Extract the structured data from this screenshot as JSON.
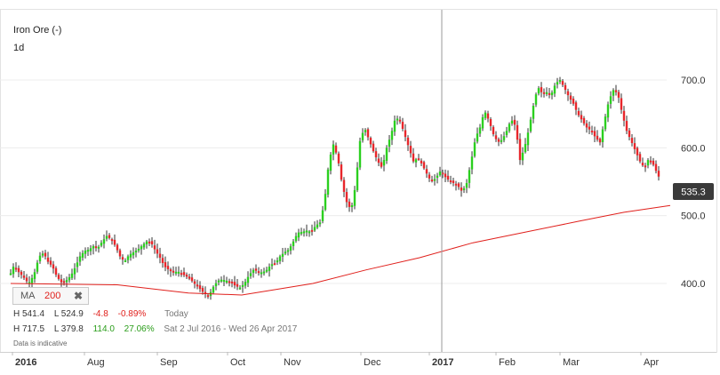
{
  "header": {
    "title": "Iron Ore (-)",
    "interval": "1d"
  },
  "moving_average": {
    "label": "MA",
    "period": "200",
    "close_icon": "close-icon"
  },
  "stats": {
    "today": {
      "high": "H 541.4",
      "low": "L 524.9",
      "change": "-4.8",
      "change_pct": "-0.89%",
      "period": "Today"
    },
    "range": {
      "high": "H 717.5",
      "low": "L 379.8",
      "change": "114.0",
      "change_pct": "27.06%",
      "period": "Sat 2 Jul 2016 - Wed 26 Apr 2017"
    }
  },
  "note": "Data is indicative",
  "last_price": "535.3",
  "colors": {
    "up": "#2bcf1f",
    "down": "#e8262b",
    "ma": "#e0201c",
    "grid": "#ececec",
    "price_tag": "#3a3a3a"
  },
  "chart_data": {
    "type": "candlestick",
    "title": "Iron Ore (-)",
    "x_ticks": [
      "2016",
      "Aug",
      "Sep",
      "Oct",
      "Nov",
      "Dec",
      "2017",
      "Feb",
      "Mar",
      "Apr"
    ],
    "y_ticks": [
      "400.0",
      "500.0",
      "600.0",
      "700.0"
    ],
    "ylim": [
      360,
      730
    ],
    "grid": true,
    "crosshair_at": "2017",
    "last_value": 535.3,
    "price_path": [
      [
        0,
        415
      ],
      [
        4,
        428
      ],
      [
        8,
        418
      ],
      [
        14,
        410
      ],
      [
        20,
        400
      ],
      [
        26,
        412
      ],
      [
        32,
        440
      ],
      [
        37,
        445
      ],
      [
        42,
        432
      ],
      [
        47,
        425
      ],
      [
        52,
        410
      ],
      [
        58,
        400
      ],
      [
        63,
        405
      ],
      [
        68,
        412
      ],
      [
        73,
        425
      ],
      [
        78,
        440
      ],
      [
        83,
        448
      ],
      [
        88,
        450
      ],
      [
        93,
        455
      ],
      [
        98,
        452
      ],
      [
        103,
        462
      ],
      [
        108,
        470
      ],
      [
        113,
        465
      ],
      [
        118,
        455
      ],
      [
        123,
        440
      ],
      [
        128,
        432
      ],
      [
        133,
        442
      ],
      [
        138,
        446
      ],
      [
        143,
        450
      ],
      [
        148,
        456
      ],
      [
        153,
        462
      ],
      [
        158,
        460
      ],
      [
        163,
        448
      ],
      [
        168,
        438
      ],
      [
        173,
        425
      ],
      [
        178,
        420
      ],
      [
        183,
        416
      ],
      [
        188,
        418
      ],
      [
        193,
        414
      ],
      [
        198,
        410
      ],
      [
        203,
        405
      ],
      [
        208,
        398
      ],
      [
        213,
        392
      ],
      [
        218,
        385
      ],
      [
        223,
        382
      ],
      [
        228,
        395
      ],
      [
        233,
        404
      ],
      [
        238,
        406
      ],
      [
        243,
        404
      ],
      [
        248,
        402
      ],
      [
        253,
        396
      ],
      [
        258,
        394
      ],
      [
        263,
        400
      ],
      [
        268,
        412
      ],
      [
        273,
        420
      ],
      [
        278,
        418
      ],
      [
        283,
        416
      ],
      [
        288,
        420
      ],
      [
        293,
        428
      ],
      [
        298,
        430
      ],
      [
        303,
        440
      ],
      [
        308,
        446
      ],
      [
        313,
        450
      ],
      [
        318,
        462
      ],
      [
        323,
        475
      ],
      [
        328,
        476
      ],
      [
        333,
        478
      ],
      [
        338,
        476
      ],
      [
        343,
        485
      ],
      [
        348,
        490
      ],
      [
        353,
        520
      ],
      [
        358,
        580
      ],
      [
        363,
        605
      ],
      [
        368,
        585
      ],
      [
        373,
        545
      ],
      [
        378,
        520
      ],
      [
        383,
        508
      ],
      [
        388,
        545
      ],
      [
        393,
        610
      ],
      [
        398,
        630
      ],
      [
        403,
        612
      ],
      [
        408,
        595
      ],
      [
        413,
        580
      ],
      [
        418,
        570
      ],
      [
        423,
        600
      ],
      [
        428,
        620
      ],
      [
        433,
        645
      ],
      [
        438,
        640
      ],
      [
        443,
        620
      ],
      [
        448,
        600
      ],
      [
        453,
        580
      ],
      [
        458,
        585
      ],
      [
        463,
        575
      ],
      [
        468,
        562
      ],
      [
        473,
        550
      ],
      [
        478,
        555
      ],
      [
        483,
        565
      ],
      [
        488,
        558
      ],
      [
        493,
        552
      ],
      [
        498,
        548
      ],
      [
        503,
        544
      ],
      [
        508,
        535
      ],
      [
        513,
        548
      ],
      [
        518,
        580
      ],
      [
        523,
        615
      ],
      [
        528,
        630
      ],
      [
        533,
        655
      ],
      [
        538,
        640
      ],
      [
        543,
        620
      ],
      [
        548,
        608
      ],
      [
        553,
        612
      ],
      [
        558,
        625
      ],
      [
        563,
        642
      ],
      [
        568,
        632
      ],
      [
        573,
        582
      ],
      [
        578,
        600
      ],
      [
        583,
        628
      ],
      [
        588,
        662
      ],
      [
        593,
        690
      ],
      [
        598,
        680
      ],
      [
        603,
        682
      ],
      [
        608,
        678
      ],
      [
        613,
        695
      ],
      [
        618,
        700
      ],
      [
        623,
        688
      ],
      [
        628,
        675
      ],
      [
        633,
        665
      ],
      [
        638,
        650
      ],
      [
        643,
        640
      ],
      [
        648,
        630
      ],
      [
        653,
        625
      ],
      [
        658,
        615
      ],
      [
        663,
        608
      ],
      [
        668,
        640
      ],
      [
        673,
        670
      ],
      [
        678,
        685
      ],
      [
        683,
        680
      ],
      [
        688,
        650
      ],
      [
        693,
        625
      ],
      [
        698,
        610
      ],
      [
        703,
        595
      ],
      [
        708,
        580
      ],
      [
        713,
        570
      ],
      [
        718,
        585
      ],
      [
        723,
        575
      ],
      [
        728,
        560
      ],
      [
        733,
        548
      ],
      [
        738,
        535
      ],
      [
        742,
        535
      ]
    ],
    "ma_path": [
      [
        0,
        400
      ],
      [
        120,
        398
      ],
      [
        200,
        386
      ],
      [
        260,
        383
      ],
      [
        340,
        400
      ],
      [
        400,
        420
      ],
      [
        460,
        438
      ],
      [
        520,
        460
      ],
      [
        580,
        476
      ],
      [
        640,
        492
      ],
      [
        690,
        505
      ],
      [
        742,
        515
      ]
    ]
  }
}
